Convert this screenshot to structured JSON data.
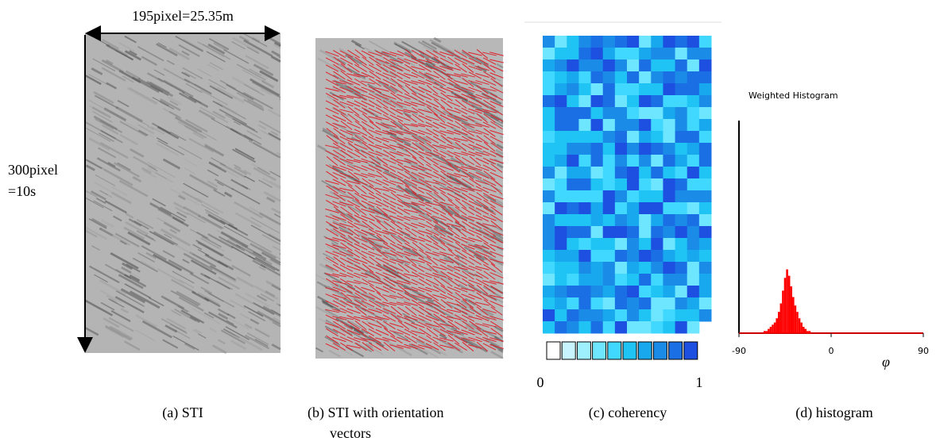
{
  "panel_a": {
    "width_label": "195pixel=25.35m",
    "height_label": [
      "300pixel",
      "=10s"
    ],
    "caption": "(a) STI"
  },
  "panel_b": {
    "caption": [
      "(b) STI with orientation",
      "vectors"
    ]
  },
  "panel_c": {
    "caption": "(c) coherency",
    "colorbar": {
      "min": 0,
      "max": 1
    }
  },
  "chart_data": {
    "type": "histogram",
    "title": "Weighted Histogram",
    "x_label": "φ",
    "caption": "(d) histogram",
    "color": "#ff0000",
    "bins": [
      -66,
      -64,
      -62,
      -60,
      -58,
      -56,
      -54,
      -52,
      -50,
      -48,
      -46,
      -44,
      -42,
      -40,
      -38,
      -36,
      -34,
      -32,
      -30,
      -28,
      -26,
      -24,
      -22,
      -20
    ],
    "values": [
      1,
      1,
      2,
      3,
      4,
      5,
      7,
      10,
      14,
      20,
      26,
      30,
      27,
      22,
      17,
      13,
      10,
      7,
      5,
      3,
      2,
      1,
      1
    ],
    "xlim": [
      -90,
      90
    ],
    "xticks": [
      -90,
      0,
      90
    ],
    "ylim": [
      0,
      100
    ]
  }
}
